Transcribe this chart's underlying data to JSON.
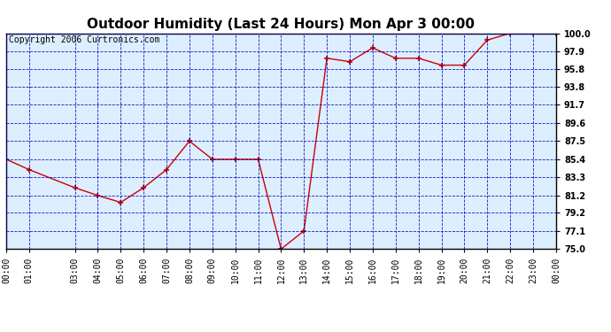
{
  "title": "Outdoor Humidity (Last 24 Hours) Mon Apr 3 00:00",
  "copyright": "Copyright 2006 Curtronics.com",
  "x_labels": [
    "00:00",
    "01:00",
    "03:00",
    "04:00",
    "05:00",
    "06:00",
    "07:00",
    "08:00",
    "09:00",
    "10:00",
    "11:00",
    "12:00",
    "13:00",
    "14:00",
    "15:00",
    "16:00",
    "17:00",
    "18:00",
    "19:00",
    "20:00",
    "21:00",
    "22:00",
    "23:00",
    "00:00"
  ],
  "x_values": [
    0,
    1,
    3,
    4,
    5,
    6,
    7,
    8,
    9,
    10,
    11,
    12,
    13,
    14,
    15,
    16,
    17,
    18,
    19,
    20,
    21,
    22,
    23,
    24
  ],
  "y_values": [
    85.4,
    84.2,
    82.1,
    81.2,
    80.4,
    82.1,
    84.2,
    87.5,
    85.4,
    85.4,
    85.4,
    75.0,
    77.1,
    97.1,
    96.7,
    98.3,
    97.1,
    97.1,
    96.3,
    96.3,
    99.2,
    100.0,
    100.0,
    100.0
  ],
  "y_ticks": [
    75.0,
    77.1,
    79.2,
    81.2,
    83.3,
    85.4,
    87.5,
    89.6,
    91.7,
    93.8,
    95.8,
    97.9,
    100.0
  ],
  "y_tick_labels": [
    "75.0",
    "77.1",
    "79.2",
    "81.2",
    "83.3",
    "85.4",
    "87.5",
    "89.6",
    "91.7",
    "93.8",
    "95.8",
    "97.9",
    "100.0"
  ],
  "ylim": [
    75.0,
    100.0
  ],
  "xlim": [
    0,
    24
  ],
  "line_color": "#cc0000",
  "marker": "+",
  "bg_color": "#ffffff",
  "plot_bg": "#ddeeff",
  "grid_color": "#0000cc",
  "outer_border_color": "#000000",
  "title_fontsize": 11,
  "tick_fontsize": 7,
  "copyright_fontsize": 7
}
